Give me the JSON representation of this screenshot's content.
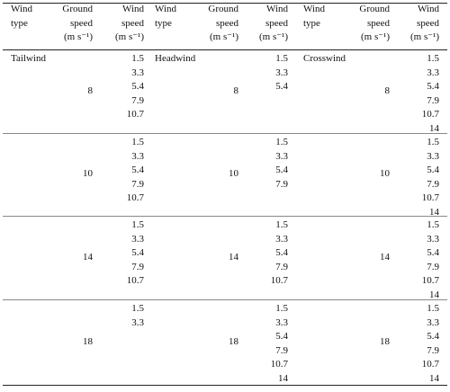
{
  "table": {
    "columns": [
      "Wind type",
      "Ground speed (m s⁻¹)",
      "Wind speed (m s⁻¹)",
      "Wind type",
      "Ground speed (m s⁻¹)",
      "Wind speed (m s⁻¹)",
      "Wind type",
      "Ground speed (m s⁻¹)",
      "Wind speed (m s⁻¹)"
    ],
    "rows": [
      [
        {
          "wind_type": "Tailwind",
          "ground_speed": 8,
          "wind_speeds": [
            1.5,
            3.3,
            5.4,
            7.9,
            10.7
          ]
        },
        {
          "wind_type": "Headwind",
          "ground_speed": 8,
          "wind_speeds": [
            1.5,
            3.3,
            5.4
          ]
        },
        {
          "wind_type": "Crosswind",
          "ground_speed": 8,
          "wind_speeds": [
            1.5,
            3.3,
            5.4,
            7.9,
            10.7,
            14
          ]
        }
      ],
      [
        {
          "ground_speed": 10,
          "wind_speeds": [
            1.5,
            3.3,
            5.4,
            7.9,
            10.7
          ]
        },
        {
          "ground_speed": 10,
          "wind_speeds": [
            1.5,
            3.3,
            5.4,
            7.9
          ]
        },
        {
          "ground_speed": 10,
          "wind_speeds": [
            1.5,
            3.3,
            5.4,
            7.9,
            10.7,
            14
          ]
        }
      ],
      [
        {
          "ground_speed": 14,
          "wind_speeds": [
            1.5,
            3.3,
            5.4,
            7.9,
            10.7
          ]
        },
        {
          "ground_speed": 14,
          "wind_speeds": [
            1.5,
            3.3,
            5.4,
            7.9,
            10.7
          ]
        },
        {
          "ground_speed": 14,
          "wind_speeds": [
            1.5,
            3.3,
            5.4,
            7.9,
            10.7,
            14
          ]
        }
      ],
      [
        {
          "ground_speed": 18,
          "wind_speeds": [
            1.5,
            3.3
          ]
        },
        {
          "ground_speed": 18,
          "wind_speeds": [
            1.5,
            3.3,
            5.4,
            7.9,
            10.7,
            14
          ]
        },
        {
          "ground_speed": 18,
          "wind_speeds": [
            1.5,
            3.3,
            5.4,
            7.9,
            10.7,
            14
          ]
        }
      ]
    ]
  }
}
